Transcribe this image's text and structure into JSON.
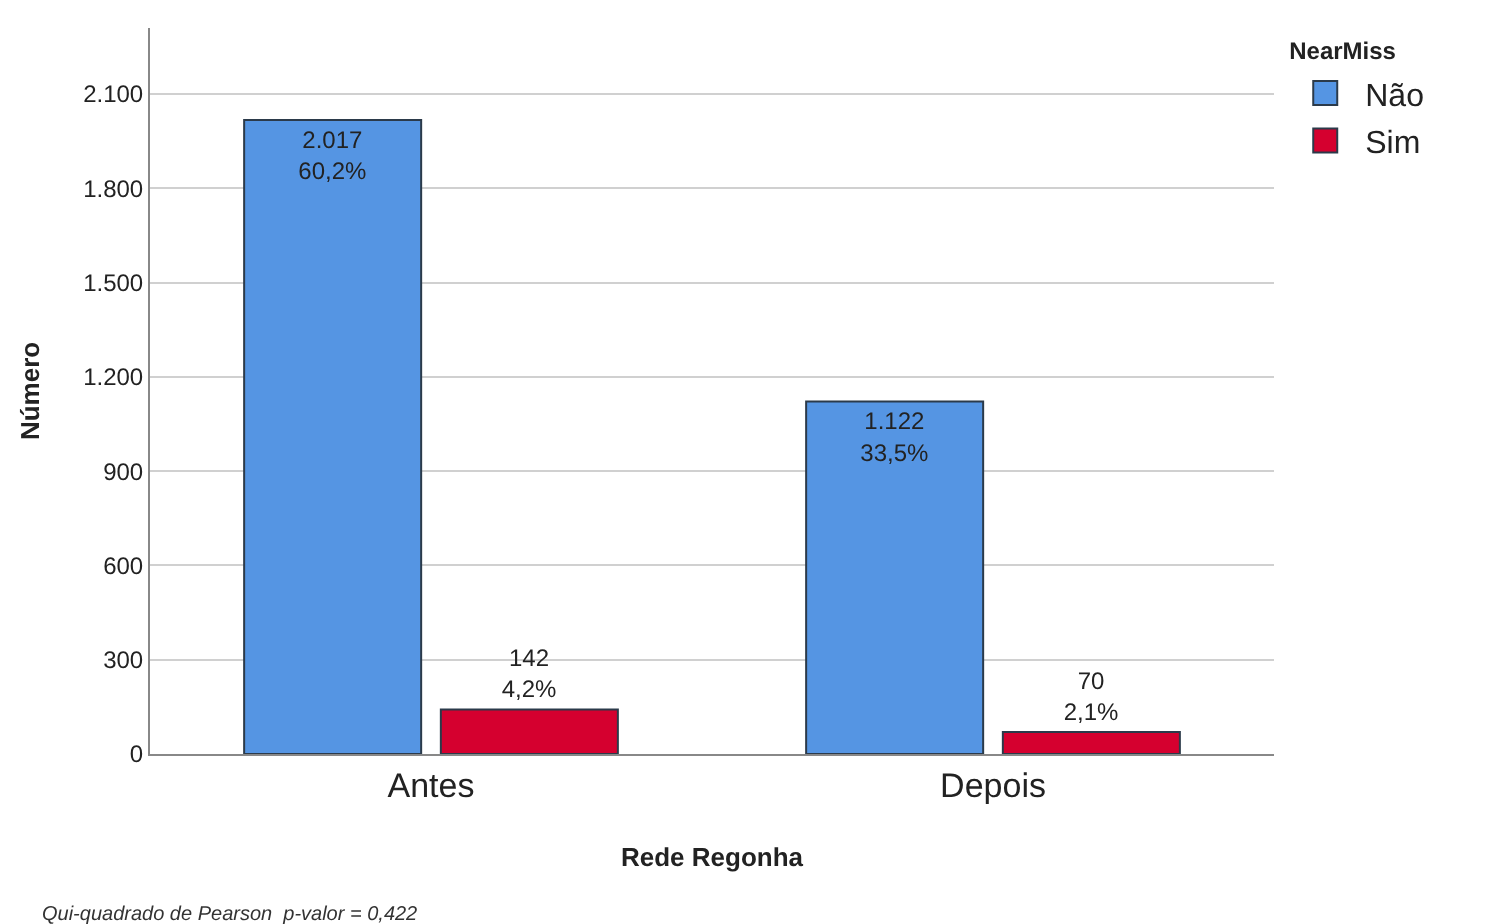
{
  "chart_data": {
    "type": "bar",
    "xlabel": "Rede Regonha",
    "ylabel": "Número",
    "legend_title": "NearMiss",
    "categories": [
      "Antes",
      "Depois"
    ],
    "series": [
      {
        "name": "Não",
        "color": "#5595e3",
        "values": [
          2017,
          1122
        ],
        "value_labels": [
          "2.017\n60,2%",
          "1.122\n33,5%"
        ]
      },
      {
        "name": "Sim",
        "color": "#d5002f",
        "values": [
          142,
          70
        ],
        "value_labels": [
          "142\n4,2%",
          "70\n2,1%"
        ]
      }
    ],
    "ylim": [
      0,
      2310
    ],
    "yticks": [
      0,
      300,
      600,
      900,
      {
        "value": 1200,
        "label": "1.200"
      },
      {
        "value": 1500,
        "label": "1.500"
      },
      {
        "value": 1800,
        "label": "1.800"
      },
      {
        "value": 2100,
        "label": "2.100"
      }
    ],
    "grid": "y",
    "legend": "top right",
    "annotations": [
      "Qui-quadrado de Pearson  p-valor = 0,422"
    ]
  }
}
